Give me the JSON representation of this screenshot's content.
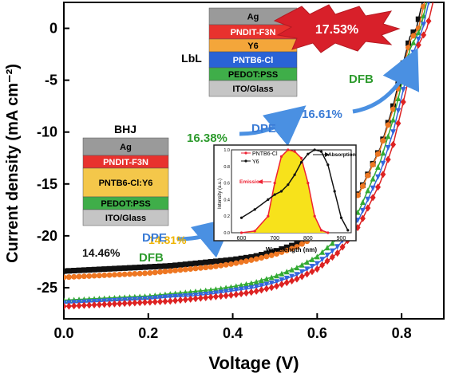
{
  "chart_data": {
    "type": "line",
    "xlabel": "Voltage (V)",
    "ylabel": "Current density (mA cm⁻²)",
    "xlim": [
      0.0,
      0.9
    ],
    "ylim": [
      -28,
      2.5
    ],
    "xticks": [
      "0.0",
      "0.2",
      "0.4",
      "0.6",
      "0.8"
    ],
    "xtick_values": [
      0.0,
      0.2,
      0.4,
      0.6,
      0.8
    ],
    "yticks": [
      "0",
      "-5",
      "-10",
      "-15",
      "-20",
      "-25"
    ],
    "ytick_values": [
      0,
      -5,
      -10,
      -15,
      -20,
      -25
    ],
    "grid": false,
    "legend": "none",
    "series": [
      {
        "color": "#111111",
        "marker": "square",
        "voc": 0.835,
        "jsc": -23.4,
        "x": [
          0,
          0.05,
          0.1,
          0.15,
          0.2,
          0.25,
          0.3,
          0.35,
          0.4,
          0.45,
          0.5,
          0.55,
          0.6,
          0.65,
          0.7,
          0.75,
          0.78,
          0.8,
          0.82,
          0.835
        ],
        "y": [
          -23.4,
          -23.3,
          -23.2,
          -23.1,
          -23.0,
          -22.9,
          -22.7,
          -22.5,
          -22.3,
          -22.0,
          -21.5,
          -20.8,
          -19.8,
          -18.2,
          -15.8,
          -11.5,
          -7.5,
          -4.0,
          -0.8,
          0.0
        ]
      },
      {
        "color": "#ee7722",
        "marker": "circle",
        "voc": 0.84,
        "jsc": -24.0,
        "x": [
          0,
          0.05,
          0.1,
          0.15,
          0.2,
          0.25,
          0.3,
          0.35,
          0.4,
          0.45,
          0.5,
          0.55,
          0.6,
          0.65,
          0.7,
          0.75,
          0.78,
          0.8,
          0.82,
          0.84
        ],
        "y": [
          -24.0,
          -23.9,
          -23.8,
          -23.7,
          -23.6,
          -23.4,
          -23.2,
          -23.0,
          -22.7,
          -22.3,
          -21.8,
          -21.1,
          -20.0,
          -18.4,
          -15.9,
          -11.6,
          -7.8,
          -4.5,
          -1.2,
          0.0
        ]
      },
      {
        "color": "#33aa33",
        "marker": "triangle-up",
        "voc": 0.845,
        "jsc": -26.2,
        "x": [
          0,
          0.05,
          0.1,
          0.15,
          0.2,
          0.25,
          0.3,
          0.35,
          0.4,
          0.45,
          0.5,
          0.55,
          0.6,
          0.65,
          0.7,
          0.75,
          0.78,
          0.8,
          0.82,
          0.845
        ],
        "y": [
          -26.2,
          -26.1,
          -26.0,
          -25.9,
          -25.8,
          -25.6,
          -25.4,
          -25.2,
          -24.9,
          -24.5,
          -23.9,
          -23.1,
          -22.0,
          -20.2,
          -17.5,
          -12.8,
          -8.8,
          -5.4,
          -2.0,
          0.0
        ]
      },
      {
        "color": "#3366dd",
        "marker": "triangle-down",
        "voc": 0.85,
        "jsc": -26.5,
        "x": [
          0,
          0.05,
          0.1,
          0.15,
          0.2,
          0.25,
          0.3,
          0.35,
          0.4,
          0.45,
          0.5,
          0.55,
          0.6,
          0.65,
          0.7,
          0.75,
          0.78,
          0.8,
          0.82,
          0.85
        ],
        "y": [
          -26.5,
          -26.4,
          -26.3,
          -26.2,
          -26.1,
          -25.9,
          -25.8,
          -25.6,
          -25.3,
          -25.0,
          -24.5,
          -23.8,
          -22.7,
          -21.0,
          -18.3,
          -13.8,
          -10.0,
          -6.6,
          -3.2,
          0.0
        ]
      },
      {
        "color": "#dd2222",
        "marker": "diamond",
        "voc": 0.86,
        "jsc": -26.8,
        "x": [
          0,
          0.05,
          0.1,
          0.15,
          0.2,
          0.25,
          0.3,
          0.35,
          0.4,
          0.45,
          0.5,
          0.55,
          0.6,
          0.65,
          0.7,
          0.75,
          0.78,
          0.8,
          0.82,
          0.84,
          0.86
        ],
        "y": [
          -26.8,
          -26.7,
          -26.6,
          -26.5,
          -26.4,
          -26.3,
          -26.1,
          -25.9,
          -25.7,
          -25.4,
          -24.9,
          -24.2,
          -23.2,
          -21.6,
          -19.0,
          -14.8,
          -11.2,
          -7.8,
          -4.3,
          -1.6,
          0.0
        ]
      }
    ]
  },
  "annotations": {
    "lbl_1446": "14.46%",
    "lbl_1481": "14.81%",
    "lbl_1638": "16.38%",
    "lbl_1661": "16.61%",
    "lbl_1753": "17.53%",
    "dpe_1": "DPE",
    "dfb_1": "DFB",
    "dpe_2": "DPE",
    "dfb_2": "DFB",
    "bhj_title": "BHJ",
    "lbl_title": "LbL"
  },
  "bhj_stack": {
    "layers": [
      {
        "label": "Ag",
        "color": "#9a9a9a"
      },
      {
        "label": "PNDIT-F3N",
        "color": "#e8322e"
      },
      {
        "label": "PNTB6-Cl:Y6",
        "color": "#f4c74a"
      },
      {
        "label": "PEDOT:PSS",
        "color": "#3fae49"
      },
      {
        "label": "ITO/Glass",
        "color": "#c5c5c5"
      }
    ]
  },
  "lbl_stack": {
    "layers": [
      {
        "label": "Ag",
        "color": "#9a9a9a"
      },
      {
        "label": "PNDIT-F3N",
        "color": "#e8322e"
      },
      {
        "label": "Y6",
        "color": "#f4a63a"
      },
      {
        "label": "PNTB6-Cl",
        "color": "#2a63d6"
      },
      {
        "label": "PEDOT:PSS",
        "color": "#3fae49"
      },
      {
        "label": "ITO/Glass",
        "color": "#c5c5c5"
      }
    ]
  },
  "inset": {
    "xlabel": "Wavelength (nm)",
    "ylabel": "Intensity (a.u.)",
    "xticks": [
      "600",
      "700",
      "800",
      "900"
    ],
    "yticks": [
      "0.0",
      "0.2",
      "0.4",
      "0.6",
      "0.8",
      "1.0"
    ],
    "legend": [
      "PNTB6-Cl",
      "Y6"
    ],
    "arrow_emission": "Emission",
    "arrow_absorption": "Absorption",
    "emission": {
      "x": [
        600,
        640,
        680,
        700,
        720,
        740,
        760,
        780,
        800,
        820,
        840,
        860
      ],
      "y": [
        0.0,
        0.02,
        0.2,
        0.6,
        0.92,
        1.0,
        0.98,
        0.9,
        0.6,
        0.2,
        0.03,
        0.0
      ]
    },
    "absorption": {
      "x": [
        600,
        640,
        680,
        700,
        720,
        740,
        760,
        780,
        800,
        820,
        840,
        860,
        880,
        900,
        920
      ],
      "y": [
        0.18,
        0.28,
        0.4,
        0.46,
        0.5,
        0.58,
        0.7,
        0.85,
        0.95,
        1.0,
        0.98,
        0.82,
        0.5,
        0.18,
        0.03
      ]
    }
  }
}
